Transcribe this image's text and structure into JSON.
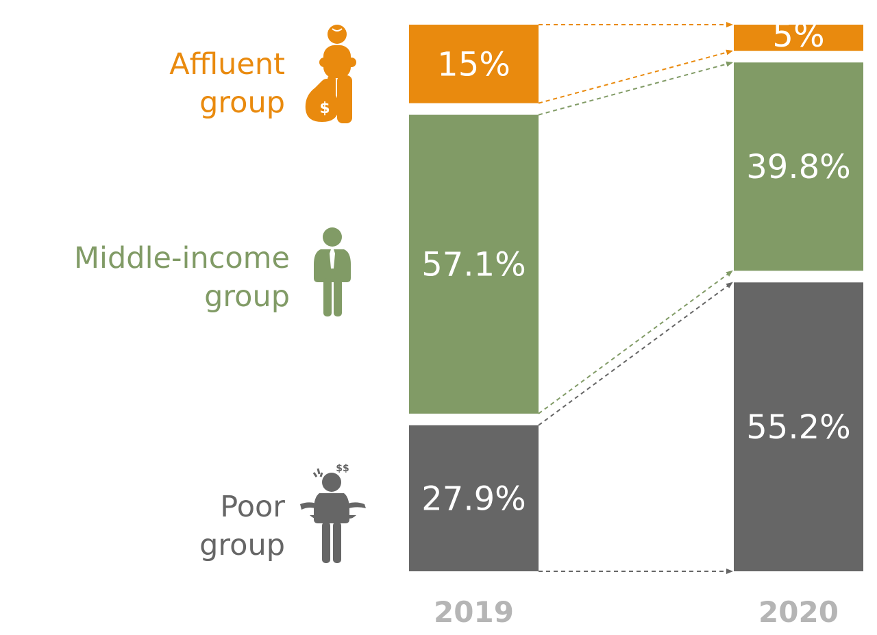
{
  "chart_data": {
    "type": "bar",
    "stacked": true,
    "categories": [
      "2019",
      "2020"
    ],
    "series": [
      {
        "key": "affluent",
        "name_lines": [
          "Affluent",
          "group"
        ],
        "icon": "affluent-person-money-bag-icon",
        "color": "#e98a0e",
        "values": [
          15,
          5
        ],
        "value_labels": [
          "15%",
          "5%"
        ]
      },
      {
        "key": "middle",
        "name_lines": [
          "Middle-income",
          "group"
        ],
        "icon": "businessman-icon",
        "color": "#819b66",
        "values": [
          57.1,
          39.8
        ],
        "value_labels": [
          "57.1%",
          "39.8%"
        ]
      },
      {
        "key": "poor",
        "name_lines": [
          "Poor",
          "group"
        ],
        "icon": "poor-person-empty-pockets-icon",
        "color": "#666666",
        "values": [
          27.9,
          55.2
        ],
        "value_labels": [
          "27.9%",
          "55.2%"
        ]
      }
    ],
    "connectors": "dashed-arrows"
  }
}
